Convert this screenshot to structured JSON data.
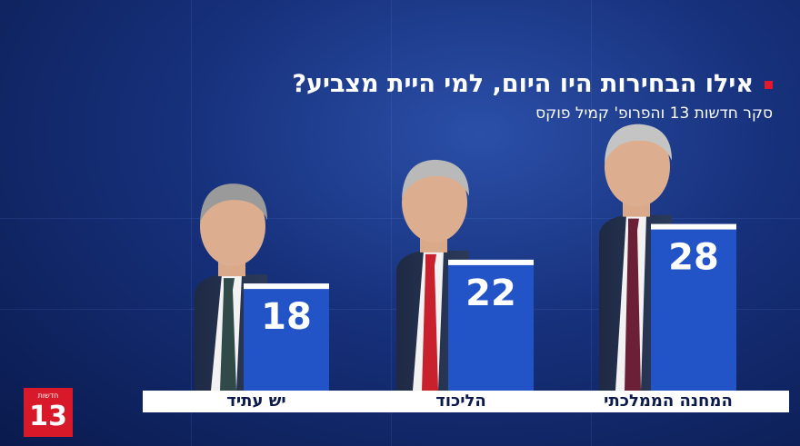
{
  "headline": "אילו הבחירות היו היום, למי היית מצביע?",
  "subtitle": "סקר חדשות 13 והפרופ' קמיל פוקס",
  "logo": {
    "small": "חדשות",
    "number": "13"
  },
  "colors": {
    "accent": "#e3182d",
    "bar": "#2354c7",
    "bar_top": "#ffffff",
    "background": "#16307a"
  },
  "chart_data": {
    "type": "bar",
    "categories": [
      "יש עתיד",
      "הליכוד",
      "המחנה הממלכתי"
    ],
    "values": [
      18,
      22,
      28
    ],
    "title": "אילו הבחירות היו היום, למי היית מצביע?",
    "subtitle": "סקר חדשות 13 והפרופ' קמיל פוקס",
    "xlabel": "",
    "ylabel": "",
    "grid": false,
    "legend": "none"
  }
}
